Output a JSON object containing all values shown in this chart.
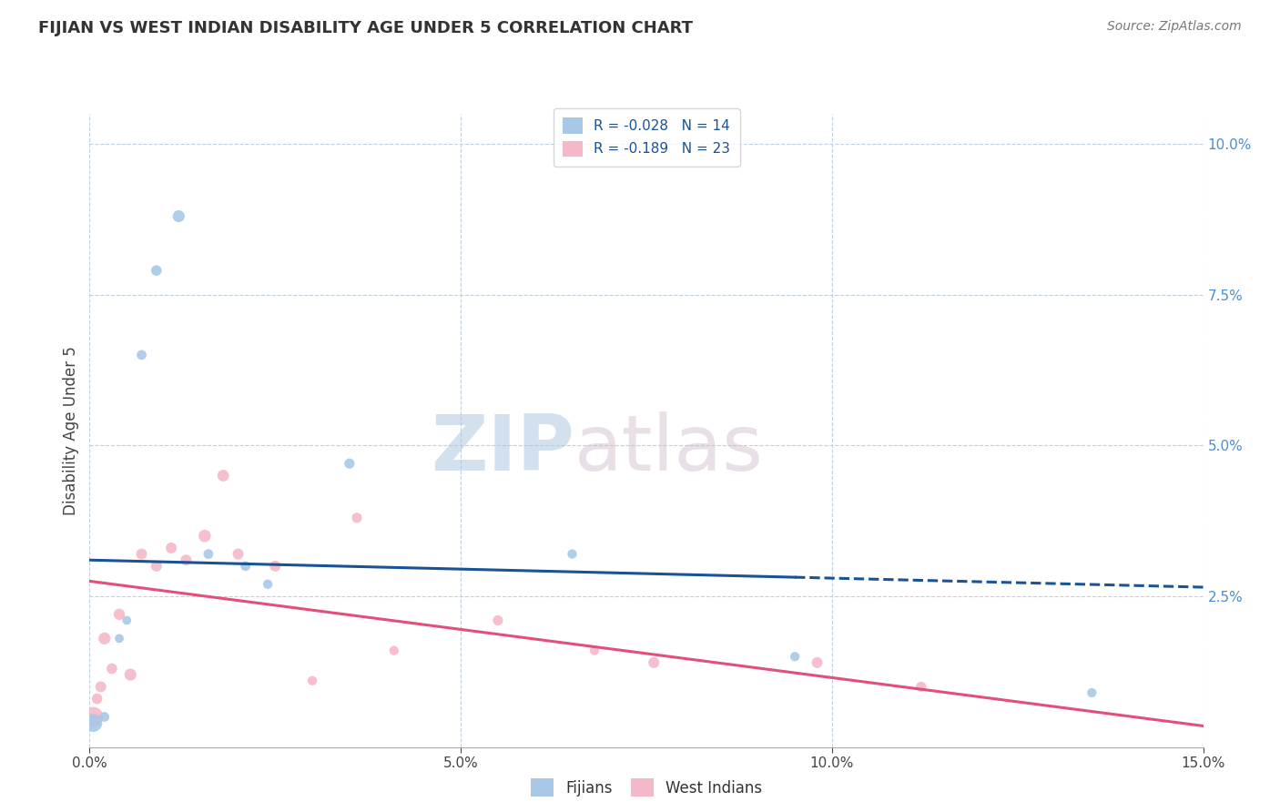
{
  "title": "FIJIAN VS WEST INDIAN DISABILITY AGE UNDER 5 CORRELATION CHART",
  "source": "Source: ZipAtlas.com",
  "ylabel": "Disability Age Under 5",
  "x_tick_labels": [
    "0.0%",
    "5.0%",
    "10.0%",
    "15.0%"
  ],
  "x_tick_vals": [
    0.0,
    5.0,
    10.0,
    15.0
  ],
  "y_tick_labels": [
    "2.5%",
    "5.0%",
    "7.5%",
    "10.0%"
  ],
  "y_tick_vals": [
    2.5,
    5.0,
    7.5,
    10.0
  ],
  "xlim": [
    0,
    15
  ],
  "ylim": [
    0,
    10.5
  ],
  "fijian_color": "#a8c8e8",
  "fijian_line_color": "#1a5296",
  "west_indian_color": "#f5b8c8",
  "west_indian_line_color": "#e0507a",
  "legend_R_fijian": "R = -0.028",
  "legend_N_fijian": "N = 14",
  "legend_R_wi": "R = -0.189",
  "legend_N_wi": "N = 23",
  "fijian_x": [
    0.05,
    0.2,
    0.4,
    0.5,
    0.7,
    0.9,
    1.2,
    1.6,
    2.1,
    2.4,
    3.5,
    6.5,
    9.5,
    13.5
  ],
  "fijian_y": [
    0.4,
    0.5,
    1.8,
    2.1,
    6.5,
    7.9,
    8.8,
    3.2,
    3.0,
    2.7,
    4.7,
    3.2,
    1.5,
    0.9
  ],
  "fijian_sizes": [
    200,
    60,
    50,
    50,
    60,
    70,
    90,
    60,
    60,
    55,
    65,
    55,
    55,
    55
  ],
  "west_indian_x": [
    0.05,
    0.1,
    0.15,
    0.2,
    0.3,
    0.4,
    0.55,
    0.7,
    0.9,
    1.1,
    1.3,
    1.55,
    1.8,
    2.0,
    2.5,
    3.0,
    3.6,
    4.1,
    5.5,
    6.8,
    7.6,
    9.8,
    11.2
  ],
  "west_indian_y": [
    0.5,
    0.8,
    1.0,
    1.8,
    1.3,
    2.2,
    1.2,
    3.2,
    3.0,
    3.3,
    3.1,
    3.5,
    4.5,
    3.2,
    3.0,
    1.1,
    3.8,
    1.6,
    2.1,
    1.6,
    1.4,
    1.4,
    1.0
  ],
  "west_indian_sizes": [
    250,
    70,
    75,
    90,
    70,
    80,
    90,
    75,
    75,
    75,
    75,
    95,
    85,
    75,
    75,
    55,
    65,
    55,
    65,
    55,
    75,
    75,
    65
  ],
  "watermark_zip": "ZIP",
  "watermark_atlas": "atlas",
  "background_color": "#ffffff",
  "grid_color": "#c0d0e0",
  "fijian_reg_x_start": 0.0,
  "fijian_reg_x_solid_end": 9.5,
  "fijian_reg_x_end": 15.0,
  "fijian_reg_y_start": 3.1,
  "fijian_reg_y_end": 2.65,
  "wi_reg_x_start": 0.0,
  "wi_reg_x_end": 15.0,
  "wi_reg_y_start": 2.75,
  "wi_reg_y_end": 0.35
}
